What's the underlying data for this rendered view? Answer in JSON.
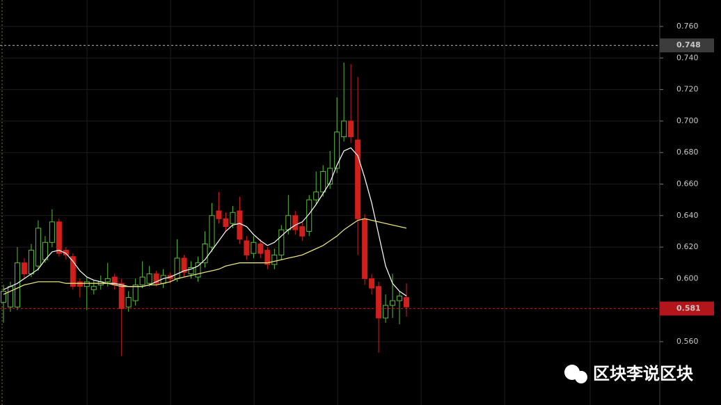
{
  "chart_data": {
    "type": "candlestick",
    "ylim": [
      0.5198,
      0.7768
    ],
    "yticks": [
      {
        "value": 0.56,
        "label": "0.560"
      },
      {
        "value": 0.6,
        "label": "0.600"
      },
      {
        "value": 0.62,
        "label": "0.620"
      },
      {
        "value": 0.64,
        "label": "0.640"
      },
      {
        "value": 0.66,
        "label": "0.660"
      },
      {
        "value": 0.68,
        "label": "0.680"
      },
      {
        "value": 0.7,
        "label": "0.700"
      },
      {
        "value": 0.72,
        "label": "0.720"
      },
      {
        "value": 0.74,
        "label": "0.740"
      },
      {
        "value": 0.76,
        "label": "0.760"
      }
    ],
    "grid": true,
    "up_color": "#5dbb3a",
    "down_color": "#d11f1c",
    "open": [
      0.585,
      0.582,
      0.582,
      0.61,
      0.603,
      0.608,
      0.612,
      0.623,
      0.636,
      0.618,
      0.614,
      0.598,
      0.595,
      0.593,
      0.596,
      0.598,
      0.601,
      0.597,
      0.582,
      0.586,
      0.596,
      0.597,
      0.603,
      0.597,
      0.602,
      0.6,
      0.613,
      0.603,
      0.601,
      0.61,
      0.62,
      0.643,
      0.638,
      0.635,
      0.643,
      0.624,
      0.616,
      0.622,
      0.618,
      0.609,
      0.615,
      0.631,
      0.64,
      0.633,
      0.63,
      0.65,
      0.655,
      0.66,
      0.67,
      0.69,
      0.7,
      0.688,
      0.638,
      0.6,
      0.595,
      0.575,
      0.583,
      0.586,
      0.588
    ],
    "high": [
      0.596,
      0.598,
      0.62,
      0.613,
      0.622,
      0.637,
      0.627,
      0.644,
      0.638,
      0.62,
      0.616,
      0.6,
      0.601,
      0.599,
      0.602,
      0.61,
      0.603,
      0.6,
      0.592,
      0.6,
      0.611,
      0.608,
      0.605,
      0.606,
      0.604,
      0.625,
      0.615,
      0.611,
      0.614,
      0.63,
      0.648,
      0.655,
      0.642,
      0.646,
      0.652,
      0.627,
      0.627,
      0.625,
      0.62,
      0.619,
      0.634,
      0.653,
      0.643,
      0.636,
      0.653,
      0.668,
      0.672,
      0.681,
      0.715,
      0.737,
      0.736,
      0.728,
      0.641,
      0.603,
      0.598,
      0.59,
      0.603,
      0.592,
      0.597
    ],
    "low": [
      0.572,
      0.579,
      0.58,
      0.6,
      0.601,
      0.605,
      0.61,
      0.62,
      0.614,
      0.612,
      0.593,
      0.588,
      0.58,
      0.59,
      0.593,
      0.595,
      0.593,
      0.551,
      0.579,
      0.583,
      0.594,
      0.595,
      0.595,
      0.594,
      0.597,
      0.598,
      0.601,
      0.6,
      0.598,
      0.607,
      0.617,
      0.635,
      0.63,
      0.632,
      0.622,
      0.612,
      0.613,
      0.613,
      0.606,
      0.606,
      0.612,
      0.628,
      0.628,
      0.624,
      0.627,
      0.647,
      0.652,
      0.657,
      0.667,
      0.687,
      0.686,
      0.615,
      0.596,
      0.59,
      0.553,
      0.572,
      0.575,
      0.571,
      0.576
    ],
    "close": [
      0.592,
      0.595,
      0.61,
      0.603,
      0.618,
      0.632,
      0.623,
      0.636,
      0.616,
      0.615,
      0.595,
      0.595,
      0.598,
      0.595,
      0.598,
      0.6,
      0.596,
      0.581,
      0.588,
      0.596,
      0.601,
      0.603,
      0.597,
      0.602,
      0.6,
      0.613,
      0.604,
      0.607,
      0.61,
      0.622,
      0.64,
      0.638,
      0.633,
      0.642,
      0.625,
      0.615,
      0.623,
      0.616,
      0.609,
      0.615,
      0.631,
      0.64,
      0.631,
      0.627,
      0.65,
      0.655,
      0.668,
      0.67,
      0.693,
      0.7,
      0.69,
      0.638,
      0.6,
      0.594,
      0.575,
      0.583,
      0.586,
      0.589,
      0.582
    ],
    "series": [
      {
        "color": "#f2f2f2",
        "values": [
          0.593,
          0.595,
          0.597,
          0.6,
          0.603,
          0.606,
          0.612,
          0.617,
          0.618,
          0.616,
          0.611,
          0.605,
          0.601,
          0.599,
          0.598,
          0.597,
          0.597,
          0.596,
          0.595,
          0.595,
          0.595,
          0.596,
          0.598,
          0.6,
          0.601,
          0.603,
          0.605,
          0.606,
          0.608,
          0.612,
          0.618,
          0.624,
          0.63,
          0.634,
          0.635,
          0.633,
          0.628,
          0.624,
          0.621,
          0.623,
          0.627,
          0.631,
          0.634,
          0.636,
          0.641,
          0.647,
          0.654,
          0.661,
          0.672,
          0.681,
          0.683,
          0.678,
          0.664,
          0.648,
          0.628,
          0.608,
          0.597,
          0.592,
          0.589
        ]
      },
      {
        "color": "#e8e07a",
        "values": [
          0.59,
          0.592,
          0.594,
          0.596,
          0.597,
          0.598,
          0.598,
          0.598,
          0.598,
          0.597,
          0.597,
          0.597,
          0.597,
          0.597,
          0.597,
          0.597,
          0.596,
          0.595,
          0.595,
          0.595,
          0.595,
          0.596,
          0.596,
          0.597,
          0.598,
          0.6,
          0.601,
          0.602,
          0.603,
          0.604,
          0.605,
          0.606,
          0.608,
          0.609,
          0.61,
          0.61,
          0.61,
          0.61,
          0.61,
          0.611,
          0.612,
          0.613,
          0.614,
          0.615,
          0.617,
          0.619,
          0.621,
          0.624,
          0.627,
          0.631,
          0.634,
          0.637,
          0.638,
          0.637,
          0.636,
          0.635,
          0.634,
          0.633,
          0.632
        ]
      }
    ],
    "price_lines": [
      {
        "value": 0.748,
        "label": "0.748",
        "color": "#bbbbbb",
        "tag_color": "#3c3c3c"
      },
      {
        "value": 0.581,
        "label": "0.581",
        "color": "#c0201c",
        "tag_color": "#b3161a"
      }
    ],
    "watermark": "区块李说区块"
  }
}
